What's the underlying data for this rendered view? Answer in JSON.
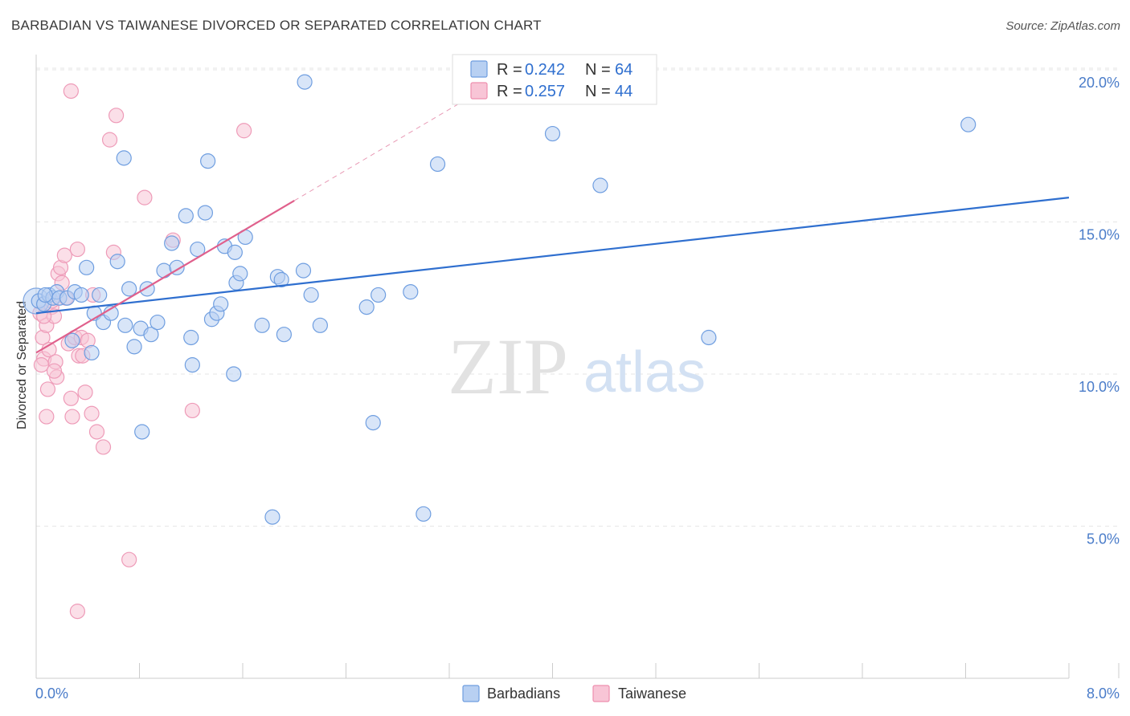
{
  "title": "BARBADIAN VS TAIWANESE DIVORCED OR SEPARATED CORRELATION CHART",
  "source": "Source: ZipAtlas.com",
  "watermark": {
    "zip": "ZIP",
    "atlas": "atlas"
  },
  "legend_top": [
    {
      "r_label": "R =",
      "r_value": "0.242",
      "n_label": "N =",
      "n_value": "64"
    },
    {
      "r_label": "R =",
      "r_value": "0.257",
      "n_label": "N =",
      "n_value": "44"
    }
  ],
  "colors": {
    "blue": "#6f9ee0",
    "blue_fill": "#b8d0f2",
    "blue_line": "#2f6fcf",
    "pink": "#ee8fae",
    "pink_fill": "#f8c5d6",
    "pink_line": "#e0608c",
    "tick": "#4a7cc9"
  },
  "chart_data": {
    "type": "scatter",
    "title": "BARBADIAN VS TAIWANESE DIVORCED OR SEPARATED CORRELATION CHART",
    "xlabel": "",
    "ylabel": "Divorced or Separated",
    "xlim": [
      0,
      8
    ],
    "ylim": [
      0,
      20.5
    ],
    "x_tick_labels": [
      "0.0%",
      "8.0%"
    ],
    "y_ticks": [
      5,
      10,
      15,
      20
    ],
    "y_tick_labels": [
      "5.0%",
      "10.0%",
      "15.0%",
      "20.0%"
    ],
    "grid": true,
    "legend_position": "bottom",
    "series": [
      {
        "name": "Barbadians",
        "r": 0.242,
        "n": 64,
        "trend": {
          "x": [
            0,
            8
          ],
          "y": [
            12.0,
            15.8
          ]
        },
        "points": [
          [
            0.02,
            12.4
          ],
          [
            0.06,
            12.3
          ],
          [
            0.1,
            12.6
          ],
          [
            0.13,
            12.5
          ],
          [
            0.16,
            12.7
          ],
          [
            0.18,
            12.5
          ],
          [
            0.24,
            12.5
          ],
          [
            0.3,
            12.7
          ],
          [
            0.35,
            12.6
          ],
          [
            0.39,
            13.5
          ],
          [
            0.45,
            12.0
          ],
          [
            0.49,
            12.6
          ],
          [
            0.52,
            11.7
          ],
          [
            0.58,
            12.0
          ],
          [
            0.63,
            13.7
          ],
          [
            0.69,
            11.6
          ],
          [
            0.72,
            12.8
          ],
          [
            0.76,
            10.9
          ],
          [
            0.81,
            11.5
          ],
          [
            0.86,
            12.8
          ],
          [
            0.89,
            11.3
          ],
          [
            0.94,
            11.7
          ],
          [
            0.99,
            13.4
          ],
          [
            1.05,
            14.3
          ],
          [
            1.09,
            13.5
          ],
          [
            1.16,
            15.2
          ],
          [
            1.2,
            11.2
          ],
          [
            1.25,
            14.1
          ],
          [
            1.31,
            15.3
          ],
          [
            1.36,
            11.8
          ],
          [
            1.4,
            12.0
          ],
          [
            1.43,
            12.3
          ],
          [
            1.46,
            14.2
          ],
          [
            1.55,
            13.0
          ],
          [
            1.58,
            13.3
          ],
          [
            1.62,
            14.5
          ],
          [
            1.75,
            11.6
          ],
          [
            1.87,
            13.2
          ],
          [
            1.92,
            11.3
          ],
          [
            2.07,
            13.4
          ],
          [
            2.2,
            11.6
          ],
          [
            0.07,
            12.6
          ],
          [
            1.9,
            13.1
          ],
          [
            2.13,
            12.6
          ],
          [
            2.56,
            12.2
          ],
          [
            2.9,
            12.7
          ],
          [
            3.11,
            16.9
          ],
          [
            4.0,
            17.9
          ],
          [
            4.37,
            16.2
          ],
          [
            5.21,
            11.2
          ],
          [
            7.22,
            18.2
          ],
          [
            1.33,
            17.0
          ],
          [
            0.68,
            17.1
          ],
          [
            2.08,
            19.6
          ],
          [
            0.82,
            8.1
          ],
          [
            1.21,
            10.3
          ],
          [
            1.53,
            10.0
          ],
          [
            1.83,
            5.3
          ],
          [
            2.61,
            8.4
          ],
          [
            3.0,
            5.4
          ],
          [
            0.43,
            10.7
          ],
          [
            0.28,
            11.1
          ],
          [
            1.54,
            14.0
          ],
          [
            2.65,
            12.6
          ]
        ]
      },
      {
        "name": "Taiwanese",
        "r": 0.257,
        "n": 44,
        "trend": {
          "x": [
            0,
            2.0
          ],
          "y": [
            10.7,
            15.7
          ]
        },
        "trend_extension": {
          "x": [
            2.0,
            8
          ],
          "y": [
            15.7,
            30.7
          ]
        },
        "points": [
          [
            0.03,
            12.0
          ],
          [
            0.05,
            11.2
          ],
          [
            0.06,
            10.5
          ],
          [
            0.04,
            10.3
          ],
          [
            0.08,
            11.6
          ],
          [
            0.09,
            9.5
          ],
          [
            0.1,
            10.8
          ],
          [
            0.12,
            12.2
          ],
          [
            0.14,
            11.9
          ],
          [
            0.15,
            10.4
          ],
          [
            0.16,
            9.9
          ],
          [
            0.17,
            13.3
          ],
          [
            0.19,
            13.5
          ],
          [
            0.2,
            13.0
          ],
          [
            0.22,
            13.9
          ],
          [
            0.23,
            12.5
          ],
          [
            0.25,
            11.0
          ],
          [
            0.27,
            9.2
          ],
          [
            0.28,
            8.6
          ],
          [
            0.3,
            11.2
          ],
          [
            0.32,
            14.1
          ],
          [
            0.33,
            10.6
          ],
          [
            0.35,
            11.2
          ],
          [
            0.36,
            10.6
          ],
          [
            0.38,
            9.4
          ],
          [
            0.4,
            11.1
          ],
          [
            0.43,
            8.7
          ],
          [
            0.44,
            12.6
          ],
          [
            0.47,
            8.1
          ],
          [
            0.52,
            7.6
          ],
          [
            0.08,
            8.6
          ],
          [
            0.6,
            14.0
          ],
          [
            0.62,
            18.5
          ],
          [
            0.57,
            17.7
          ],
          [
            0.27,
            19.3
          ],
          [
            0.84,
            15.8
          ],
          [
            1.06,
            14.4
          ],
          [
            1.21,
            8.8
          ],
          [
            1.61,
            18.0
          ],
          [
            0.72,
            3.9
          ],
          [
            0.32,
            2.2
          ],
          [
            0.06,
            11.9
          ],
          [
            0.12,
            12.4
          ],
          [
            0.14,
            10.1
          ]
        ]
      }
    ]
  },
  "bottom_legend": [
    {
      "label": "Barbadians"
    },
    {
      "label": "Taiwanese"
    }
  ]
}
